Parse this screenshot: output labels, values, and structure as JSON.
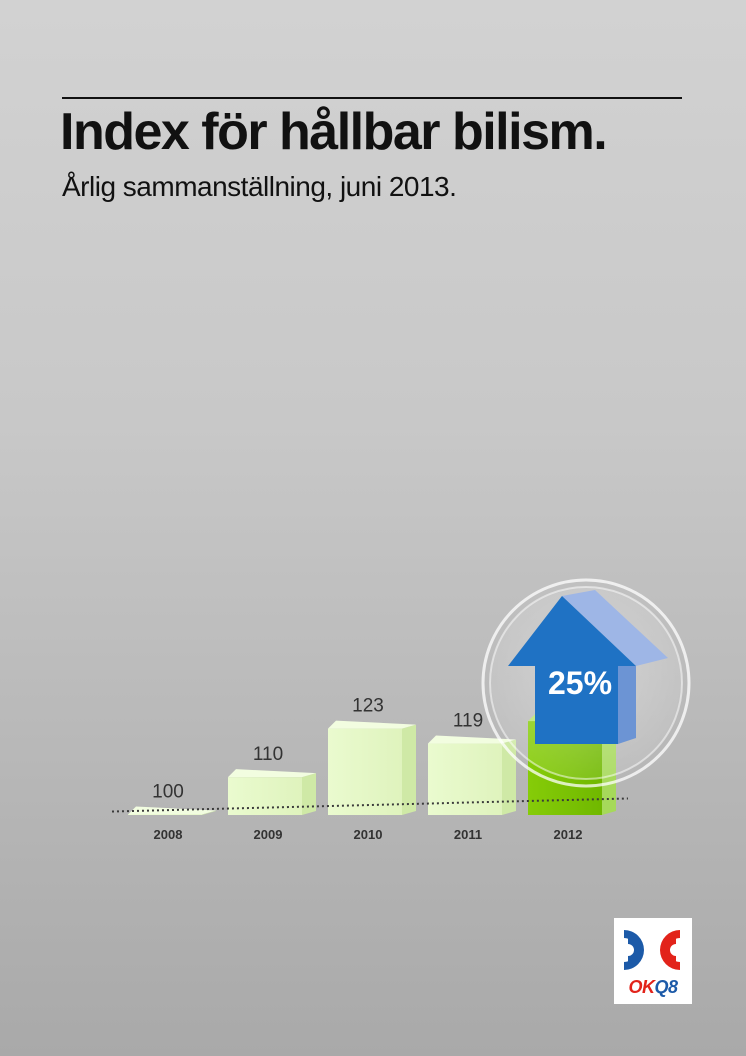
{
  "header": {
    "title": "Index för hållbar bilism.",
    "subtitle": "Årlig sammanställning, juni 2013."
  },
  "chart_data": {
    "type": "bar",
    "title": "Index för hållbar bilism.",
    "subtitle": "Årlig sammanställning, juni 2013.",
    "categories": [
      "2008",
      "2009",
      "2010",
      "2011",
      "2012"
    ],
    "values": [
      100,
      110,
      123,
      119,
      125
    ],
    "baseline": 100,
    "baseline_style": "dotted",
    "highlight_category": "2012",
    "ylim": [
      0,
      125
    ],
    "grid": false,
    "colors": {
      "bar": "#e5f7c4",
      "bar_side": "#cfe9a6",
      "highlight": "#7cc400",
      "highlight_side": "#a6d95a",
      "arrow": "#1f72c4"
    },
    "badge": {
      "label": "25%",
      "category": "2012",
      "icon": "arrow-up-icon"
    }
  },
  "logo": {
    "icon": "okq8-logo",
    "ok_text": "OK",
    "q8_text": "Q8"
  }
}
